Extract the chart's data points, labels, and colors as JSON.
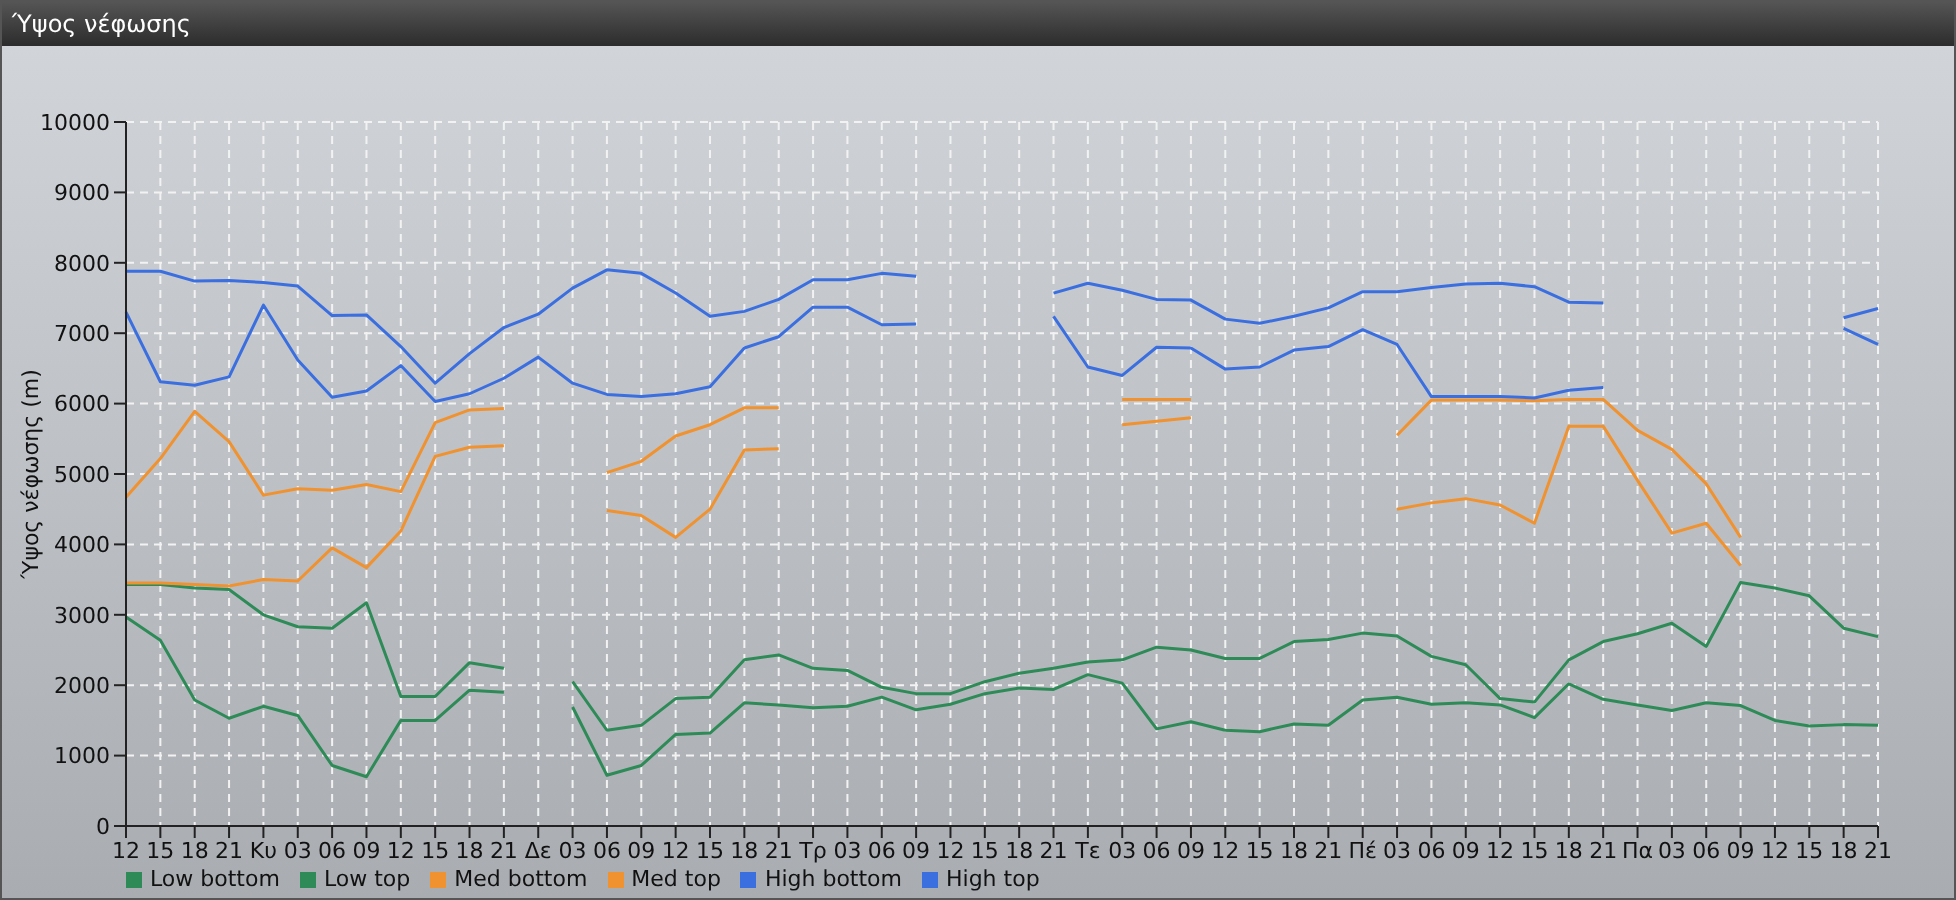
{
  "chart_data": {
    "type": "line",
    "title": "Ύψος νέφωσης",
    "ylabel": "Ύψος νέφωσης (m)",
    "categories": [
      "12",
      "15",
      "18",
      "21",
      "Κυ",
      "03",
      "06",
      "09",
      "12",
      "15",
      "18",
      "21",
      "Δε",
      "03",
      "06",
      "09",
      "12",
      "15",
      "18",
      "21",
      "Τρ",
      "03",
      "06",
      "09",
      "12",
      "15",
      "18",
      "21",
      "Τε",
      "03",
      "06",
      "09",
      "12",
      "15",
      "18",
      "21",
      "Πέ",
      "03",
      "06",
      "09",
      "12",
      "15",
      "18",
      "21",
      "Πα",
      "03",
      "06",
      "09",
      "12",
      "15",
      "18",
      "21"
    ],
    "ylim": [
      0,
      10000
    ],
    "yticks": [
      0,
      1000,
      2000,
      3000,
      4000,
      5000,
      6000,
      7000,
      8000,
      9000,
      10000
    ],
    "grid": true,
    "legend": "bottom left",
    "marker": "none",
    "line_style": "solid",
    "series": [
      {
        "name": "Low bottom",
        "color": "#2e8b57",
        "values": [
          2970,
          2640,
          1790,
          1530,
          1700,
          1570,
          860,
          700,
          1500,
          1500,
          1930,
          1900,
          null,
          1690,
          720,
          860,
          1300,
          1320,
          1750,
          1720,
          1680,
          1700,
          1830,
          1650,
          1730,
          1880,
          1960,
          1940,
          2150,
          2030,
          1380,
          1480,
          1360,
          1340,
          1450,
          1430,
          1790,
          1830,
          1730,
          1750,
          1720,
          1540,
          2020,
          1800,
          1720,
          1640,
          1750,
          1710,
          1500,
          1420,
          1440,
          1430
        ]
      },
      {
        "name": "Low top",
        "color": "#2e8b57",
        "values": [
          3430,
          3430,
          3380,
          3360,
          3000,
          2830,
          2810,
          3170,
          1840,
          1840,
          2320,
          2240,
          null,
          2050,
          1360,
          1430,
          1810,
          1830,
          2360,
          2430,
          2240,
          2210,
          1970,
          1880,
          1880,
          2050,
          2170,
          2240,
          2330,
          2360,
          2540,
          2500,
          2380,
          2380,
          2620,
          2650,
          2740,
          2700,
          2410,
          2290,
          1810,
          1760,
          2360,
          2620,
          2730,
          2880,
          2550,
          3460,
          3380,
          3270,
          2810,
          2690
        ]
      },
      {
        "name": "Med bottom",
        "color": "#f0922f",
        "values": [
          3450,
          3450,
          3430,
          3410,
          3500,
          3480,
          3950,
          3670,
          4190,
          5250,
          5380,
          5400,
          null,
          null,
          4480,
          4410,
          4100,
          4500,
          5340,
          5360,
          null,
          null,
          null,
          null,
          null,
          null,
          null,
          null,
          null,
          5700,
          5750,
          5800,
          null,
          null,
          null,
          null,
          null,
          4500,
          4590,
          4650,
          4560,
          4300,
          5680,
          5680,
          4910,
          4160,
          4300,
          3700,
          null,
          null,
          null,
          null
        ]
      },
      {
        "name": "Med top",
        "color": "#f0922f",
        "values": [
          4670,
          5220,
          5890,
          5460,
          4700,
          4790,
          4770,
          4850,
          4750,
          5730,
          5910,
          5930,
          null,
          null,
          5020,
          5180,
          5540,
          5700,
          5940,
          5940,
          null,
          null,
          null,
          null,
          null,
          null,
          null,
          null,
          null,
          6060,
          6060,
          6060,
          null,
          null,
          null,
          null,
          null,
          5550,
          6050,
          6050,
          6050,
          6040,
          6060,
          6060,
          5620,
          5350,
          4860,
          4100,
          null,
          null,
          null,
          null
        ]
      },
      {
        "name": "High bottom",
        "color": "#3b6fe0",
        "values": [
          7300,
          6310,
          6260,
          6380,
          7400,
          6620,
          6090,
          6180,
          6540,
          6030,
          6140,
          6360,
          6660,
          6290,
          6130,
          6100,
          6140,
          6240,
          6790,
          6950,
          7370,
          7370,
          7120,
          7130,
          null,
          null,
          null,
          7240,
          6520,
          6400,
          6800,
          6790,
          6490,
          6520,
          6760,
          6810,
          7050,
          6840,
          6100,
          6100,
          6100,
          6080,
          6190,
          6230,
          null,
          null,
          null,
          null,
          null,
          null,
          7070,
          6840
        ]
      },
      {
        "name": "High top",
        "color": "#3b6fe0",
        "values": [
          7880,
          7880,
          7740,
          7750,
          7720,
          7670,
          7250,
          7260,
          6810,
          6290,
          6710,
          7080,
          7270,
          7640,
          7900,
          7850,
          7570,
          7240,
          7310,
          7480,
          7760,
          7760,
          7850,
          7810,
          null,
          null,
          null,
          7570,
          7710,
          7610,
          7480,
          7470,
          7200,
          7140,
          7240,
          7360,
          7590,
          7590,
          7650,
          7700,
          7710,
          7660,
          7440,
          7430,
          null,
          null,
          null,
          null,
          null,
          null,
          7220,
          7350
        ]
      }
    ]
  }
}
